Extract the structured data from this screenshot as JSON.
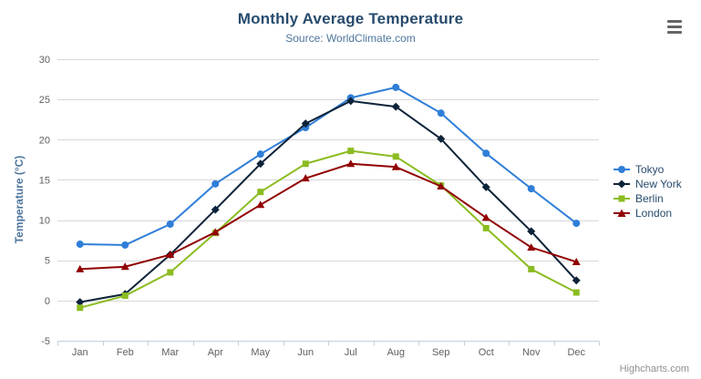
{
  "chart_data": {
    "type": "line",
    "title": "Monthly Average Temperature",
    "subtitle": "Source: WorldClimate.com",
    "xlabel": "",
    "ylabel": "Temperature (°C)",
    "categories": [
      "Jan",
      "Feb",
      "Mar",
      "Apr",
      "May",
      "Jun",
      "Jul",
      "Aug",
      "Sep",
      "Oct",
      "Nov",
      "Dec"
    ],
    "ylim": [
      -5,
      30
    ],
    "yTicks": [
      30,
      25,
      20,
      15,
      10,
      5,
      0,
      -5
    ],
    "grid": true,
    "legend_position": "right",
    "series": [
      {
        "name": "Tokyo",
        "color": "#2f7ed8",
        "marker": "circle",
        "values": [
          7.0,
          6.9,
          9.5,
          14.5,
          18.2,
          21.5,
          25.2,
          26.5,
          23.3,
          18.3,
          13.9,
          9.6
        ]
      },
      {
        "name": "New York",
        "color": "#0d233a",
        "marker": "diamond",
        "values": [
          -0.2,
          0.8,
          5.7,
          11.3,
          17.0,
          22.0,
          24.8,
          24.1,
          20.1,
          14.1,
          8.6,
          2.5
        ]
      },
      {
        "name": "Berlin",
        "color": "#8bbc21",
        "marker": "square",
        "values": [
          -0.9,
          0.6,
          3.5,
          8.4,
          13.5,
          17.0,
          18.6,
          17.9,
          14.3,
          9.0,
          3.9,
          1.0
        ]
      },
      {
        "name": "London",
        "color": "#910000",
        "marker": "triangle",
        "values": [
          3.9,
          4.2,
          5.7,
          8.5,
          11.9,
          15.2,
          17.0,
          16.6,
          14.2,
          10.3,
          6.6,
          4.8
        ]
      }
    ],
    "style_colors": {
      "grid_line": "#d8d8d8",
      "axis_line": "#c0d0e0",
      "axis_label": "#606060",
      "title": "#274b6d",
      "subtitle": "#4d759e",
      "axis_title": "#4d759e",
      "legend_text": "#274b6d"
    }
  },
  "toolbar": {
    "menu_icon": "hamburger-icon"
  },
  "credits": {
    "label": "Highcharts.com"
  }
}
